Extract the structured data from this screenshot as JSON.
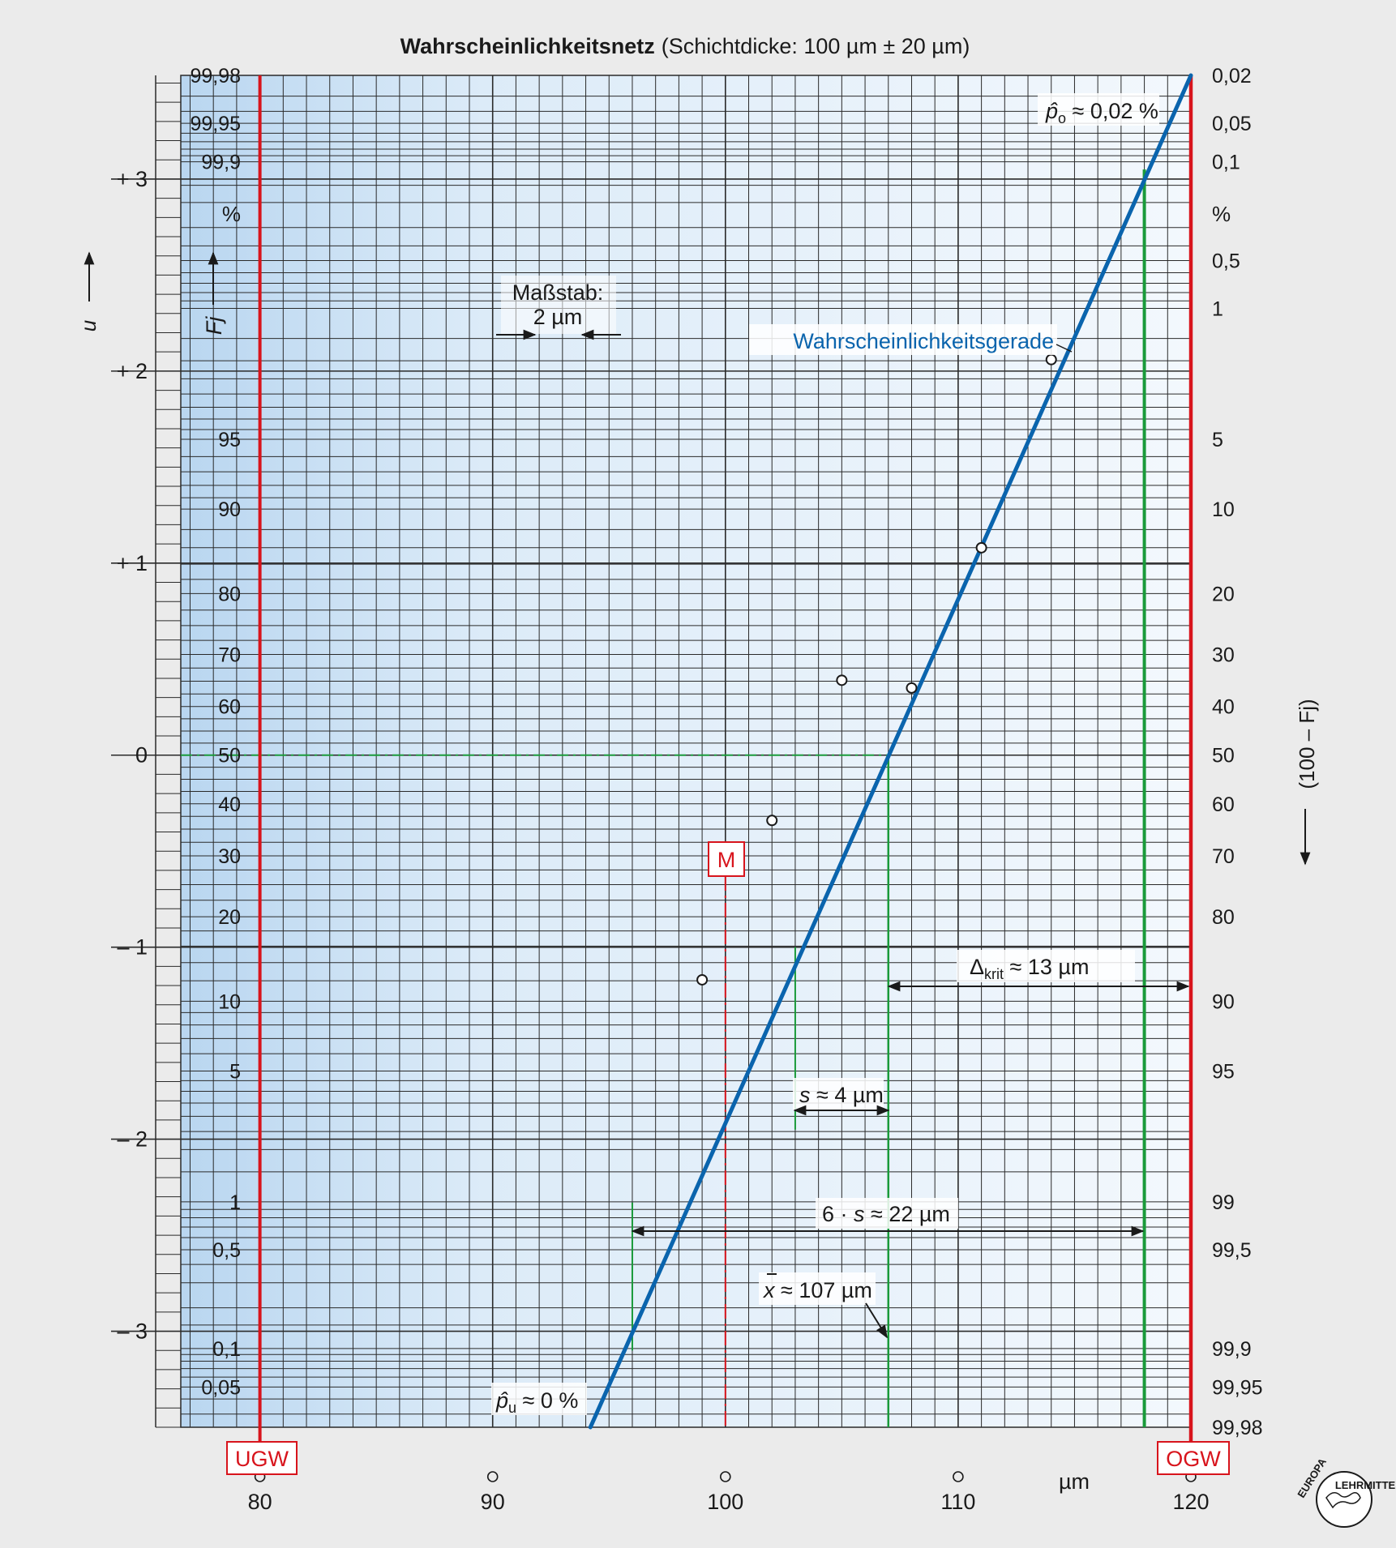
{
  "title": "Wahrscheinlichkeitsnetz",
  "subtitle": "(Schichtdicke: 100 µm ± 20 µm)",
  "axis_labels": {
    "u": "u",
    "fj": "Fj",
    "right": "(100 – Fj)",
    "x_unit": "µm"
  },
  "percent_sign": "%",
  "labels": {
    "massstab_1": "Maßstab:",
    "massstab_2": "2 µm",
    "gerade": "Wahrscheinlichkeitsgerade",
    "p_upper_sym": "p̂",
    "p_upper_sub": "o",
    "p_upper_val": " ≈ 0,02 %",
    "p_lower_sym": "p̂",
    "p_lower_sub": "u",
    "p_lower_val": " ≈ 0 %",
    "delta_sym": "Δ",
    "delta_sub": "krit",
    "delta_val": " ≈ 13 µm",
    "s_sym": "s",
    "s_val": " ≈ 4 µm",
    "six_s_pre": "6 · ",
    "six_s_sym": "s",
    "six_s_val": " ≈ 22 µm",
    "xbar_sym": "x",
    "xbar_val": " ≈ 107 µm",
    "m": "M",
    "ugw": "UGW",
    "ogw": "OGW",
    "logo_top": "EUROPA",
    "logo_bottom": "LEHRMITTEL"
  },
  "colors": {
    "grid": "#2a2a2a",
    "line": "#0a64ad",
    "limits": "#d8141c",
    "green": "#1a9a3a",
    "band": "#c8dff3"
  },
  "chart_data": {
    "type": "scatter",
    "x_unit": "µm",
    "xlim": [
      76.6,
      120
    ],
    "ylim_u": [
      -3.5,
      3.54
    ],
    "x_ticks": [
      "80",
      "90",
      "100",
      "110",
      "120"
    ],
    "u_ticks": [
      "+ 3",
      "+ 2",
      "+ 1",
      "0",
      "– 1",
      "– 2",
      "– 3"
    ],
    "fj_ticks": [
      "99,98",
      "99,95",
      "99,9",
      "95",
      "90",
      "80",
      "70",
      "60",
      "50",
      "40",
      "30",
      "20",
      "10",
      "5",
      "1",
      "0,5",
      "0,1",
      "0,05"
    ],
    "right_ticks": [
      "0,02",
      "0,05",
      "0,1",
      "0,5",
      "1",
      "5",
      "10",
      "20",
      "30",
      "40",
      "50",
      "60",
      "70",
      "80",
      "90",
      "95",
      "99",
      "99,5",
      "99,9",
      "99,95",
      "99,98"
    ],
    "points": [
      {
        "x": 99,
        "u": -1.17
      },
      {
        "x": 102,
        "u": -0.34
      },
      {
        "x": 105,
        "u": 0.39
      },
      {
        "x": 108,
        "u": 0.35
      },
      {
        "x": 111,
        "u": 1.08
      },
      {
        "x": 114,
        "u": 2.06
      }
    ],
    "regression_line": {
      "from": {
        "x": 94.2,
        "u": -3.5
      },
      "to": {
        "x": 120,
        "u": 3.54
      }
    },
    "mean_x": 107,
    "m_x": 100,
    "ugw_x": 80,
    "ogw_x": 120,
    "s": 4,
    "six_s": 22,
    "delta_krit": 13
  }
}
